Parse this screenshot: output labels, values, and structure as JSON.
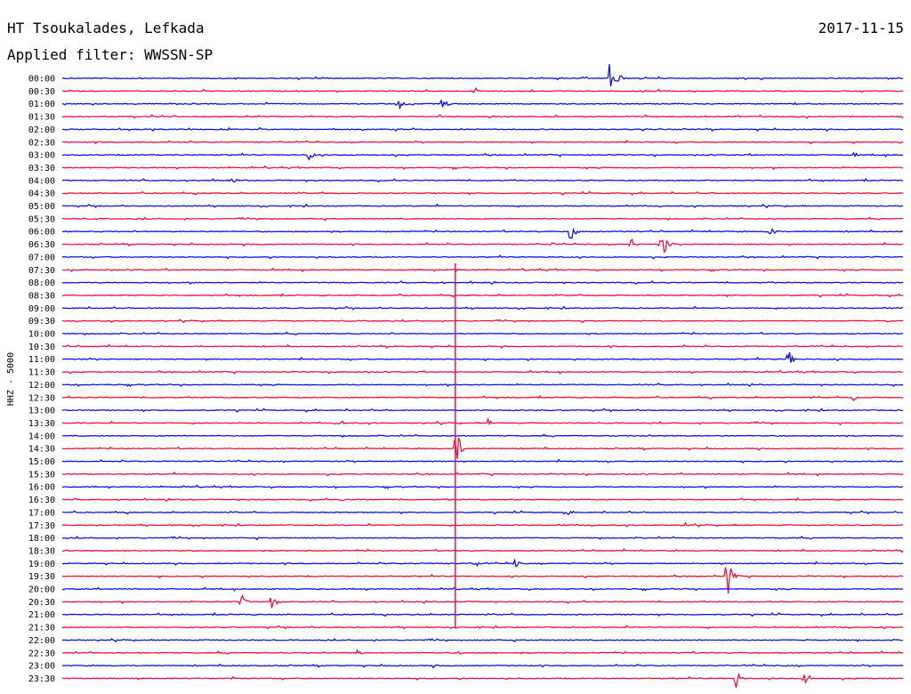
{
  "header": {
    "station": "HT Tsoukalades, Lefkada",
    "date": "2017-11-15",
    "filter": "Applied filter: WWSSN-SP"
  },
  "chart_data": {
    "type": "line",
    "ylabel": "HHZ - 5000",
    "colors": {
      "even": "#0000ff",
      "odd": "#ff0033"
    },
    "rows": [
      {
        "label": "00:00",
        "events": [
          {
            "x": 0.205,
            "a": 2
          },
          {
            "x": 0.65,
            "a": 18
          },
          {
            "x": 0.658,
            "a": 16
          },
          {
            "x": 0.8,
            "a": 3
          }
        ]
      },
      {
        "label": "00:30",
        "events": [
          {
            "x": 0.49,
            "a": 5
          },
          {
            "x": 0.69,
            "a": 3
          }
        ]
      },
      {
        "label": "01:00",
        "events": [
          {
            "x": 0.4,
            "a": 9
          },
          {
            "x": 0.45,
            "a": 6
          },
          {
            "x": 0.455,
            "a": 5
          },
          {
            "x": 0.87,
            "a": 3
          }
        ]
      },
      {
        "label": "01:30",
        "events": [
          {
            "x": 0.8,
            "a": 3
          }
        ]
      },
      {
        "label": "02:00",
        "events": []
      },
      {
        "label": "02:30",
        "events": []
      },
      {
        "label": "03:00",
        "events": [
          {
            "x": 0.293,
            "a": 9
          },
          {
            "x": 0.94,
            "a": 4
          }
        ]
      },
      {
        "label": "03:30",
        "events": []
      },
      {
        "label": "04:00",
        "events": [
          {
            "x": 0.2,
            "a": 3
          }
        ]
      },
      {
        "label": "04:30",
        "events": []
      },
      {
        "label": "05:00",
        "events": []
      },
      {
        "label": "05:30",
        "events": []
      },
      {
        "label": "06:00",
        "events": [
          {
            "x": 0.603,
            "a": 22
          },
          {
            "x": 0.84,
            "a": 18
          }
        ]
      },
      {
        "label": "06:30",
        "events": [
          {
            "x": 0.58,
            "a": 4
          },
          {
            "x": 0.675,
            "a": 10
          },
          {
            "x": 0.71,
            "a": 12
          },
          {
            "x": 0.715,
            "a": 14
          }
        ]
      },
      {
        "label": "07:00",
        "events": []
      },
      {
        "label": "07:30",
        "events": [
          {
            "x": 0.467,
            "a": 4
          }
        ]
      },
      {
        "label": "08:00",
        "events": []
      },
      {
        "label": "08:30",
        "events": []
      },
      {
        "label": "09:00",
        "events": []
      },
      {
        "label": "09:30",
        "events": [
          {
            "x": 0.98,
            "a": 4
          }
        ]
      },
      {
        "label": "10:00",
        "events": []
      },
      {
        "label": "10:30",
        "events": []
      },
      {
        "label": "11:00",
        "events": [
          {
            "x": 0.862,
            "a": 14
          }
        ]
      },
      {
        "label": "11:30",
        "events": []
      },
      {
        "label": "12:00",
        "events": []
      },
      {
        "label": "12:30",
        "events": [
          {
            "x": 0.94,
            "a": 4
          }
        ]
      },
      {
        "label": "13:00",
        "events": []
      },
      {
        "label": "13:30",
        "events": [
          {
            "x": 0.33,
            "a": 5
          },
          {
            "x": 0.505,
            "a": 6
          }
        ]
      },
      {
        "label": "14:00",
        "events": []
      },
      {
        "label": "14:30",
        "events": [
          {
            "x": 0.467,
            "a": 36
          }
        ]
      },
      {
        "label": "15:00",
        "events": []
      },
      {
        "label": "15:30",
        "events": []
      },
      {
        "label": "16:00",
        "events": []
      },
      {
        "label": "16:30",
        "events": [
          {
            "x": 0.33,
            "a": 3
          }
        ]
      },
      {
        "label": "17:00",
        "events": [
          {
            "x": 0.6,
            "a": 3
          }
        ]
      },
      {
        "label": "17:30",
        "events": [
          {
            "x": 0.74,
            "a": 4
          }
        ]
      },
      {
        "label": "18:00",
        "events": []
      },
      {
        "label": "18:30",
        "events": []
      },
      {
        "label": "19:00",
        "events": [
          {
            "x": 0.49,
            "a": 8
          },
          {
            "x": 0.537,
            "a": 7
          }
        ]
      },
      {
        "label": "19:30",
        "events": [
          {
            "x": 0.79,
            "a": 30
          }
        ]
      },
      {
        "label": "20:00",
        "events": []
      },
      {
        "label": "20:30",
        "events": [
          {
            "x": 0.212,
            "a": 12
          },
          {
            "x": 0.248,
            "a": 16
          }
        ]
      },
      {
        "label": "21:00",
        "events": []
      },
      {
        "label": "21:30",
        "events": []
      },
      {
        "label": "22:00",
        "events": [
          {
            "x": 0.88,
            "a": 3
          }
        ]
      },
      {
        "label": "22:30",
        "events": [
          {
            "x": 0.35,
            "a": 6
          },
          {
            "x": 0.47,
            "a": 3
          }
        ]
      },
      {
        "label": "23:00",
        "events": [
          {
            "x": 0.44,
            "a": 3
          }
        ]
      },
      {
        "label": "23:30",
        "events": [
          {
            "x": 0.8,
            "a": 16
          },
          {
            "x": 0.882,
            "a": 16
          }
        ]
      }
    ],
    "big_event": {
      "row": "14:30",
      "x": 0.467
    }
  }
}
